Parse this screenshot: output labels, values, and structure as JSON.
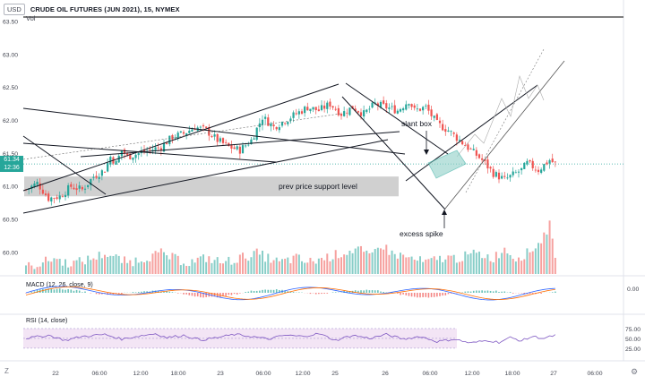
{
  "header": {
    "currency": "USD",
    "title": "CRUDE OIL FUTURES (JUN 2021), 15, NYMEX",
    "vol_label": "Vol"
  },
  "price_tags": {
    "last": "61.34",
    "countdown": "12:36"
  },
  "annotations": {
    "slant_box": "slant box",
    "support": "prev price support level",
    "spike": "excess spike"
  },
  "macd_label": "MACD (12, 26, close, 9)",
  "rsi_label": "RSI (14, close)",
  "footer": {
    "z_label": "Z"
  },
  "colors": {
    "up": "#26a69a",
    "down": "#ef5350",
    "rsi": "#7e57c2",
    "rsi_band": "#f3e5f5",
    "macd": "#2962ff",
    "signal": "#ff6d00",
    "support_band": "#c8c8c8",
    "box_fill": "#8fd0c7"
  },
  "chart_data": {
    "type": "candlestick",
    "main_axis": {
      "ticks": [
        63.5,
        63.0,
        62.5,
        62.0,
        61.5,
        61.0,
        60.5,
        60.0
      ],
      "ylim": [
        59.66,
        63.58
      ]
    },
    "macd_axis": {
      "ticks": [
        0.0
      ]
    },
    "rsi_axis": {
      "ticks": [
        75.0,
        50.0,
        25.0
      ]
    },
    "time_labels": [
      "22",
      "06:00",
      "12:00",
      "18:00",
      "23",
      "06:00",
      "12:00",
      "25",
      "26",
      "06:00",
      "12:00",
      "18:00",
      "27",
      "06:00"
    ],
    "support_level": [
      60.85,
      61.15
    ],
    "current_price": 61.34,
    "close_path": [
      [
        0,
        60.95
      ],
      [
        4,
        61.05
      ],
      [
        8,
        60.82
      ],
      [
        12,
        60.85
      ],
      [
        16,
        61.0
      ],
      [
        20,
        60.95
      ],
      [
        24,
        61.15
      ],
      [
        28,
        61.25
      ],
      [
        30,
        61.45
      ],
      [
        32,
        61.35
      ],
      [
        34,
        61.55
      ],
      [
        36,
        61.45
      ],
      [
        40,
        61.5
      ],
      [
        44,
        61.55
      ],
      [
        48,
        61.6
      ],
      [
        52,
        61.75
      ],
      [
        56,
        61.8
      ],
      [
        60,
        61.9
      ],
      [
        64,
        61.85
      ],
      [
        68,
        61.7
      ],
      [
        72,
        61.6
      ],
      [
        76,
        61.55
      ],
      [
        80,
        61.7
      ],
      [
        84,
        62.05
      ],
      [
        88,
        61.9
      ],
      [
        92,
        62.0
      ],
      [
        96,
        62.1
      ],
      [
        100,
        62.2
      ],
      [
        104,
        62.15
      ],
      [
        108,
        62.25
      ],
      [
        112,
        62.1
      ],
      [
        116,
        62.2
      ],
      [
        120,
        62.1
      ],
      [
        124,
        62.25
      ],
      [
        128,
        62.2
      ],
      [
        132,
        62.15
      ],
      [
        136,
        62.3
      ],
      [
        138,
        62.15
      ],
      [
        142,
        62.2
      ],
      [
        146,
        61.95
      ],
      [
        150,
        61.85
      ],
      [
        154,
        61.7
      ],
      [
        158,
        61.55
      ],
      [
        162,
        61.4
      ],
      [
        166,
        61.2
      ],
      [
        170,
        61.1
      ],
      [
        174,
        61.2
      ],
      [
        176,
        61.25
      ],
      [
        178,
        61.35
      ],
      [
        182,
        61.25
      ],
      [
        186,
        61.4
      ],
      [
        188,
        61.34
      ]
    ],
    "volume_path": [
      [
        0,
        1
      ],
      [
        6,
        2
      ],
      [
        10,
        3
      ],
      [
        14,
        2
      ],
      [
        18,
        2
      ],
      [
        24,
        3
      ],
      [
        28,
        4
      ],
      [
        32,
        3
      ],
      [
        36,
        2
      ],
      [
        42,
        3
      ],
      [
        48,
        4
      ],
      [
        52,
        3
      ],
      [
        58,
        2
      ],
      [
        64,
        3
      ],
      [
        70,
        2
      ],
      [
        76,
        3
      ],
      [
        82,
        4
      ],
      [
        86,
        3
      ],
      [
        90,
        2
      ],
      [
        96,
        3
      ],
      [
        100,
        2
      ],
      [
        106,
        3
      ],
      [
        112,
        4
      ],
      [
        118,
        5
      ],
      [
        122,
        3
      ],
      [
        126,
        6
      ],
      [
        130,
        4
      ],
      [
        136,
        3
      ],
      [
        142,
        2
      ],
      [
        148,
        3
      ],
      [
        154,
        3
      ],
      [
        160,
        4
      ],
      [
        166,
        3
      ],
      [
        170,
        5
      ],
      [
        174,
        3
      ],
      [
        178,
        4
      ],
      [
        182,
        6
      ],
      [
        186,
        10
      ],
      [
        188,
        4
      ]
    ],
    "rsi_path": [
      [
        0,
        50
      ],
      [
        8,
        58
      ],
      [
        14,
        45
      ],
      [
        20,
        55
      ],
      [
        28,
        60
      ],
      [
        34,
        48
      ],
      [
        40,
        56
      ],
      [
        46,
        62
      ],
      [
        50,
        52
      ],
      [
        56,
        58
      ],
      [
        62,
        46
      ],
      [
        68,
        52
      ],
      [
        74,
        60
      ],
      [
        80,
        55
      ],
      [
        86,
        48
      ],
      [
        92,
        58
      ],
      [
        98,
        55
      ],
      [
        104,
        62
      ],
      [
        110,
        45
      ],
      [
        116,
        58
      ],
      [
        122,
        50
      ],
      [
        128,
        60
      ],
      [
        134,
        48
      ],
      [
        140,
        55
      ],
      [
        146,
        42
      ],
      [
        152,
        48
      ],
      [
        158,
        38
      ],
      [
        164,
        45
      ],
      [
        168,
        40
      ],
      [
        172,
        52
      ],
      [
        176,
        44
      ],
      [
        180,
        55
      ],
      [
        184,
        50
      ],
      [
        188,
        58
      ]
    ]
  }
}
